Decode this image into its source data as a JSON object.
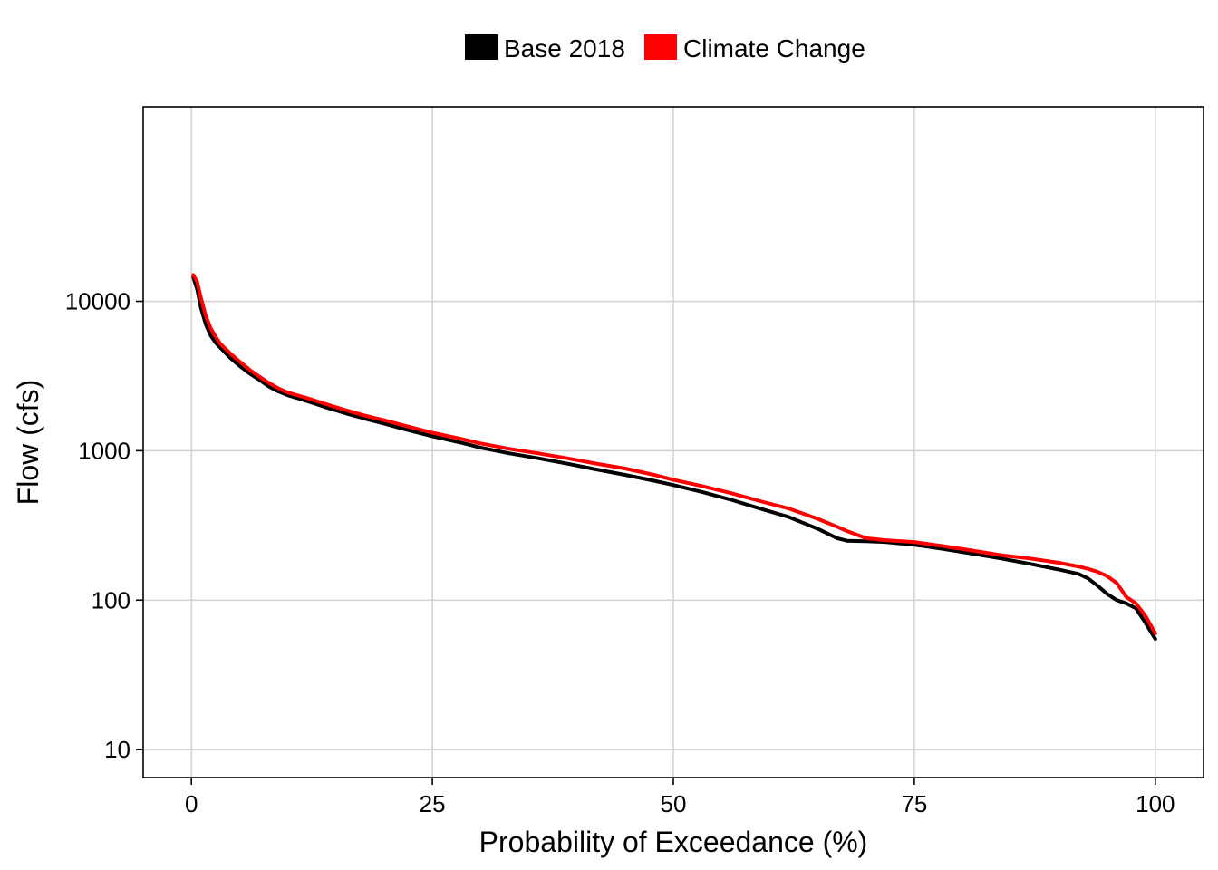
{
  "chart_data": {
    "type": "line",
    "xlabel": "Probability of Exceedance (%)",
    "ylabel": "Flow (cfs)",
    "xlim": [
      -5,
      105
    ],
    "ylim": [
      6.5,
      200000
    ],
    "y_scale": "log",
    "grid": true,
    "legend_position": "top",
    "x_ticks": [
      0,
      25,
      50,
      75,
      100
    ],
    "x_tick_labels": [
      "0",
      "25",
      "50",
      "75",
      "100"
    ],
    "y_ticks": [
      10,
      100,
      1000,
      10000
    ],
    "y_tick_labels": [
      "10",
      "100",
      "1000",
      "10000"
    ],
    "series": [
      {
        "name": "Base 2018",
        "color": "#000000",
        "x": [
          0.2,
          0.6,
          1.0,
          1.5,
          2,
          2.5,
          3,
          4,
          5,
          6,
          7,
          8,
          9,
          10,
          12,
          14,
          16,
          18,
          20,
          22,
          25,
          28,
          30,
          33,
          36,
          39,
          42,
          45,
          48,
          50,
          53,
          56,
          59,
          62,
          65,
          67,
          68,
          70,
          72,
          75,
          78,
          81,
          84,
          87,
          90,
          92,
          93,
          94,
          95,
          96,
          97,
          98,
          99,
          100
        ],
        "values": [
          14500,
          12000,
          9000,
          7000,
          5900,
          5300,
          4900,
          4200,
          3700,
          3300,
          3000,
          2700,
          2500,
          2350,
          2150,
          1950,
          1780,
          1640,
          1520,
          1400,
          1250,
          1130,
          1050,
          960,
          890,
          820,
          750,
          690,
          630,
          590,
          530,
          470,
          410,
          360,
          300,
          260,
          250,
          248,
          245,
          235,
          220,
          205,
          190,
          175,
          160,
          150,
          140,
          125,
          110,
          100,
          95,
          88,
          70,
          55
        ]
      },
      {
        "name": "Climate Change",
        "color": "#ff0000",
        "x": [
          0.2,
          0.6,
          1.0,
          1.5,
          2,
          2.5,
          3,
          4,
          5,
          6,
          7,
          8,
          9,
          10,
          12,
          14,
          16,
          18,
          20,
          22,
          25,
          28,
          30,
          33,
          36,
          39,
          42,
          45,
          48,
          50,
          53,
          56,
          59,
          62,
          65,
          67,
          68,
          70,
          72,
          75,
          78,
          81,
          84,
          87,
          90,
          92,
          93,
          94,
          95,
          96,
          97,
          98,
          99,
          100
        ],
        "values": [
          15000,
          13500,
          10500,
          8000,
          6600,
          5800,
          5200,
          4500,
          3950,
          3500,
          3150,
          2850,
          2620,
          2450,
          2250,
          2050,
          1870,
          1720,
          1600,
          1480,
          1320,
          1200,
          1120,
          1030,
          960,
          890,
          820,
          760,
          690,
          640,
          580,
          520,
          460,
          410,
          350,
          310,
          290,
          260,
          252,
          245,
          230,
          215,
          200,
          190,
          178,
          168,
          162,
          155,
          145,
          130,
          105,
          95,
          78,
          60
        ]
      }
    ]
  }
}
